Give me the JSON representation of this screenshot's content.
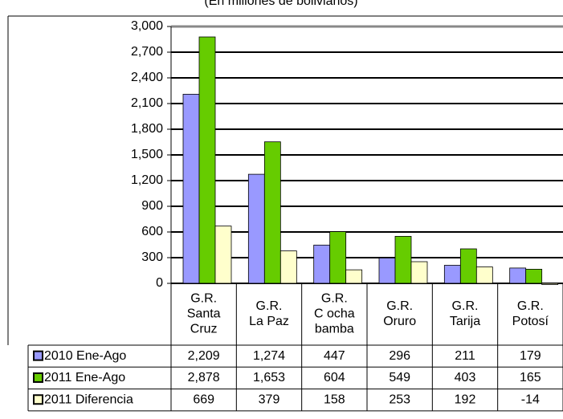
{
  "chart_data": {
    "type": "bar",
    "subtitle": "(En millones de bolivianos)",
    "categories": [
      "G.R.\nSanta\nCruz",
      "G.R.\nLa Paz",
      "G.R.\nC ocha\nbamba",
      "G.R.\nOruro",
      "G.R.\nTarija",
      "G.R.\nPotosí"
    ],
    "series": [
      {
        "name": "2010 Ene-Ago",
        "color": "#9999ff",
        "values": [
          2209,
          1274,
          447,
          296,
          211,
          179
        ],
        "value_labels": [
          "2,209",
          "1,274",
          "447",
          "296",
          "211",
          "179"
        ]
      },
      {
        "name": "2011 Ene-Ago",
        "color": "#66cc00",
        "values": [
          2878,
          1653,
          604,
          549,
          403,
          165
        ],
        "value_labels": [
          "2,878",
          "1,653",
          "604",
          "549",
          "403",
          "165"
        ]
      },
      {
        "name": "2011 Diferencia",
        "color": "#ffffcc",
        "values": [
          669,
          379,
          158,
          253,
          192,
          -14
        ],
        "value_labels": [
          "669",
          "379",
          "158",
          "253",
          "192",
          "-14"
        ]
      }
    ],
    "ylim": [
      0,
      3000
    ],
    "yticks": [
      0,
      300,
      600,
      900,
      {
        "value": 1200,
        "label": "1,200"
      },
      {
        "value": 1500,
        "label": "1,500"
      },
      {
        "value": 1800,
        "label": "1,800"
      },
      {
        "value": 2100,
        "label": "2,100"
      },
      {
        "value": 2400,
        "label": "2,400"
      },
      {
        "value": 2700,
        "label": "2,700"
      },
      {
        "value": 3000,
        "label": "3,000"
      }
    ],
    "grid": true,
    "data_table": true
  }
}
